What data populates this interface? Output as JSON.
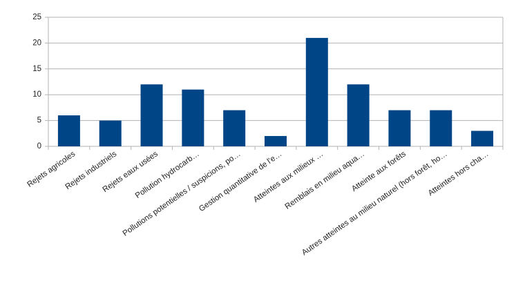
{
  "chart_data": {
    "type": "bar",
    "categories": [
      "Rejets agricoles",
      "Rejets industriels",
      "Rejets eaux usées",
      "Pollution hydrocarb…",
      "Pollutions potentielles / suspicions, po…",
      "Gestion quantitative de l'e…",
      "Atteintes aux milieux …",
      "Remblais en milieu aqua…",
      "Atteinte aux forêts",
      "Autres atteintes au milieu naturel (hors forêt, ho…",
      "Atteintes hors cha…"
    ],
    "values": [
      6,
      5,
      12,
      11,
      7,
      2,
      21,
      12,
      7,
      7,
      3
    ],
    "color": "#004586",
    "ylim": [
      0,
      25
    ],
    "yticks": [
      0,
      5,
      10,
      15,
      20,
      25
    ],
    "grid": true
  }
}
